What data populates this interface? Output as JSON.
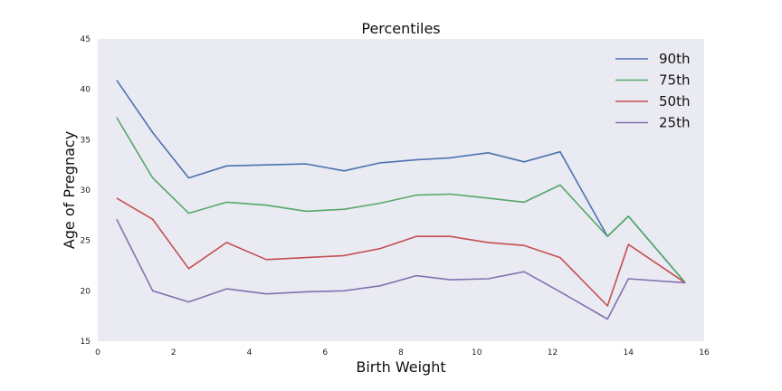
{
  "chart_data": {
    "type": "line",
    "title": "Percentiles",
    "xlabel": "Birth Weight",
    "ylabel": "Age of Pregnacy",
    "xlim": [
      0,
      16
    ],
    "ylim": [
      15,
      45
    ],
    "xticks": [
      0,
      2,
      4,
      6,
      8,
      10,
      12,
      14,
      16
    ],
    "yticks": [
      15,
      20,
      25,
      30,
      35,
      40,
      45
    ],
    "grid": false,
    "legend_position": "top-right",
    "background": "#EAEAF2",
    "x": [
      0.5,
      1.45,
      2.4,
      3.4,
      4.45,
      5.5,
      6.5,
      7.45,
      8.4,
      9.3,
      10.3,
      11.25,
      12.2,
      13.45,
      14.0,
      15.5
    ],
    "series": [
      {
        "name": "90th",
        "color": "#4C72B0",
        "values": [
          40.9,
          35.7,
          31.2,
          32.4,
          32.5,
          32.6,
          31.9,
          32.7,
          33.0,
          33.2,
          33.7,
          32.8,
          33.8,
          25.4,
          27.4,
          20.8
        ]
      },
      {
        "name": "75th",
        "color": "#55A868",
        "values": [
          37.2,
          31.2,
          27.7,
          28.8,
          28.5,
          27.9,
          28.1,
          28.7,
          29.5,
          29.6,
          29.2,
          28.8,
          30.5,
          25.4,
          27.4,
          20.8
        ]
      },
      {
        "name": "50th",
        "color": "#C44E52",
        "values": [
          29.2,
          27.1,
          22.2,
          24.8,
          23.1,
          23.3,
          23.5,
          24.2,
          25.4,
          25.4,
          24.8,
          24.5,
          23.3,
          18.5,
          24.6,
          20.8
        ]
      },
      {
        "name": "25th",
        "color": "#8172B2",
        "values": [
          27.1,
          20.0,
          18.9,
          20.2,
          19.7,
          19.9,
          20.0,
          20.5,
          21.5,
          21.1,
          21.2,
          21.9,
          19.9,
          17.2,
          21.2,
          20.8
        ]
      }
    ]
  }
}
